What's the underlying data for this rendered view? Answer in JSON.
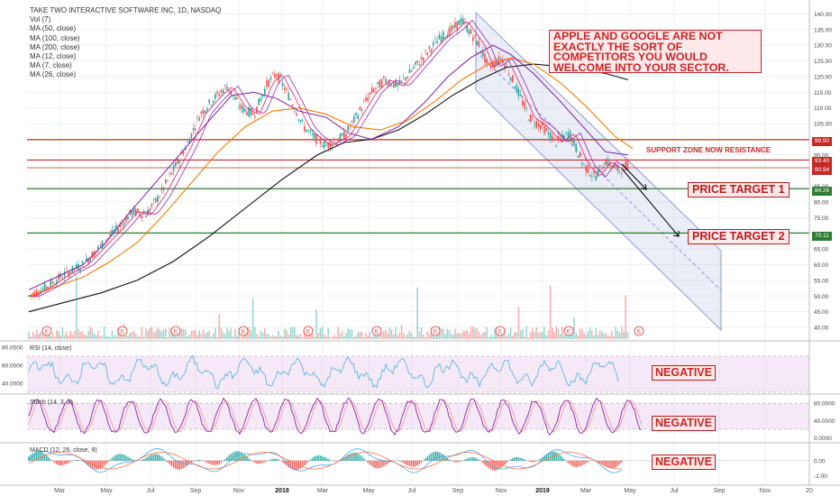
{
  "legend": {
    "title": "TAKE TWO INTERACTIVE SOFTWARE INC, 1D, NASDAQ",
    "items": [
      "Vol (7)",
      "MA (50, close)",
      "MA (100, close)",
      "MA (200, close)",
      "MA (12, close)",
      "MA (7, close)",
      "MA (26, close)"
    ]
  },
  "annotations": {
    "note": "APPLE AND GOOGLE ARE NOT EXACTLY THE SORT OF COMPETITORS YOU WOULD WELCOME INTO YOUR SECTOR.",
    "support_label": "SUPPORT ZONE NOW RESISTANCE",
    "target1": "PRICE TARGET 1",
    "target2": "PRICE TARGET 2",
    "rsi_status": "NEGATIVE",
    "stoch_status": "NEGATIVE",
    "macd_status": "NEGATIVE",
    "earnings_marker": "E"
  },
  "colors": {
    "up": "#26a69a",
    "down": "#ef5350",
    "resistance": "#c62828",
    "target": "#2e7d32",
    "ma200": "#111111",
    "ma100": "#f57c00",
    "ma50": "#7b1fa2",
    "ma26": "#9c27b0",
    "ma12": "#e91e63",
    "channel": "#9fa8da",
    "rsi": "#4fb3d9",
    "stoch_k": "#8e24aa",
    "stoch_d": "#ef9a9a",
    "macd": "#42a5f5",
    "signal": "#ff7043"
  },
  "chart_data": [
    {
      "type": "line",
      "panel": "price",
      "title": "TAKE TWO INTERACTIVE SOFTWARE INC, 1D, NASDAQ",
      "x_ticks": [
        "Mar",
        "May",
        "Jul",
        "Sep",
        "Nov",
        "2018",
        "Mar",
        "May",
        "Jul",
        "Sep",
        "Nov",
        "2019",
        "Mar",
        "May",
        "Jul",
        "Sep",
        "Nov",
        "20"
      ],
      "y_ticks": [
        40,
        45,
        50,
        55,
        60,
        65,
        70,
        75,
        80,
        85,
        90,
        95,
        100,
        105,
        110,
        115,
        120,
        125,
        130,
        135,
        140
      ],
      "ylim": [
        38,
        141
      ],
      "series": [
        {
          "name": "MA (50, close)",
          "points": [
            [
              0,
              52
            ],
            [
              30,
              56
            ],
            [
              60,
              60
            ],
            [
              85,
              67
            ],
            [
              110,
              76
            ],
            [
              140,
              86
            ],
            [
              170,
              96
            ],
            [
              200,
              106
            ],
            [
              225,
              114
            ],
            [
              250,
              115
            ],
            [
              275,
              113
            ],
            [
              300,
              109
            ],
            [
              330,
              107
            ],
            [
              355,
              102
            ],
            [
              380,
              100
            ],
            [
              410,
              104
            ],
            [
              440,
              112
            ],
            [
              465,
              120
            ],
            [
              490,
              126
            ],
            [
              515,
              130
            ],
            [
              535,
              127
            ],
            [
              560,
              121
            ],
            [
              590,
              112
            ],
            [
              615,
              104
            ],
            [
              640,
              96
            ],
            [
              665,
              95
            ]
          ]
        },
        {
          "name": "MA (100, close)",
          "points": [
            [
              0,
              50
            ],
            [
              30,
              53
            ],
            [
              60,
              56
            ],
            [
              90,
              61
            ],
            [
              120,
              67
            ],
            [
              150,
              76
            ],
            [
              180,
              86
            ],
            [
              210,
              96
            ],
            [
              240,
              104
            ],
            [
              270,
              109
            ],
            [
              300,
              110
            ],
            [
              330,
              108
            ],
            [
              360,
              104
            ],
            [
              390,
              103
            ],
            [
              420,
              106
            ],
            [
              450,
              112
            ],
            [
              480,
              119
            ],
            [
              510,
              124
            ],
            [
              535,
              126
            ],
            [
              560,
              124
            ],
            [
              590,
              118
            ],
            [
              620,
              110
            ],
            [
              650,
              101
            ],
            [
              670,
              97
            ]
          ]
        },
        {
          "name": "MA (200, close)",
          "points": [
            [
              0,
              45
            ],
            [
              40,
              48
            ],
            [
              80,
              51
            ],
            [
              120,
              55
            ],
            [
              160,
              61
            ],
            [
              200,
              69
            ],
            [
              240,
              78
            ],
            [
              280,
              87
            ],
            [
              320,
              95
            ],
            [
              350,
              99
            ],
            [
              380,
              100
            ],
            [
              410,
              103
            ],
            [
              440,
              108
            ],
            [
              470,
              114
            ],
            [
              500,
              119
            ],
            [
              530,
              123
            ],
            [
              560,
              124
            ],
            [
              600,
              123
            ],
            [
              640,
              121
            ],
            [
              665,
              119
            ]
          ]
        },
        {
          "name": "Price (close)",
          "points": [
            [
              0,
              50
            ],
            [
              20,
              53
            ],
            [
              40,
              57
            ],
            [
              60,
              60
            ],
            [
              80,
              66
            ],
            [
              100,
              72
            ],
            [
              115,
              77
            ],
            [
              130,
              76
            ],
            [
              145,
              82
            ],
            [
              160,
              90
            ],
            [
              175,
              98
            ],
            [
              190,
              108
            ],
            [
              205,
              113
            ],
            [
              220,
              117
            ],
            [
              235,
              110
            ],
            [
              250,
              108
            ],
            [
              265,
              118
            ],
            [
              275,
              121
            ],
            [
              290,
              113
            ],
            [
              305,
              104
            ],
            [
              315,
              101
            ],
            [
              330,
              98
            ],
            [
              350,
              101
            ],
            [
              365,
              108
            ],
            [
              380,
              115
            ],
            [
              395,
              119
            ],
            [
              410,
              117
            ],
            [
              425,
              122
            ],
            [
              440,
              127
            ],
            [
              455,
              132
            ],
            [
              470,
              135
            ],
            [
              480,
              138
            ],
            [
              490,
              134
            ],
            [
              500,
              130
            ],
            [
              510,
              123
            ],
            [
              525,
              126
            ],
            [
              540,
              117
            ],
            [
              555,
              107
            ],
            [
              570,
              104
            ],
            [
              585,
              99
            ],
            [
              600,
              102
            ],
            [
              615,
              92
            ],
            [
              628,
              88
            ],
            [
              640,
              93
            ],
            [
              655,
              90
            ],
            [
              665,
              92
            ]
          ]
        }
      ],
      "horizontal_levels": [
        {
          "value": 99.9,
          "label": "99.90"
        },
        {
          "value": 93.4,
          "label": "93.40"
        },
        {
          "value": 90.94,
          "label": "90.94"
        },
        {
          "value": 84.26,
          "label": "84.26"
        },
        {
          "value": 70.11,
          "label": "70.11"
        }
      ],
      "earnings_marks": 10,
      "grid": true
    },
    {
      "type": "line",
      "panel": "rsi",
      "title": "RSI (14, close)",
      "y_ticks": [
        40,
        60,
        80
      ],
      "y_tick_labels": [
        "40.0000",
        "60.0000",
        "80.0000"
      ],
      "ylim": [
        30,
        85
      ],
      "bands": [
        30,
        70
      ]
    },
    {
      "type": "line",
      "panel": "stoch",
      "title": "Stoch (14, 3, 3)",
      "y_ticks": [
        0,
        40,
        80
      ],
      "y_tick_labels": [
        "0.0000",
        "40.0000",
        "80.0000"
      ],
      "ylim": [
        -5,
        95
      ],
      "bands": [
        20,
        80
      ]
    },
    {
      "type": "bar",
      "panel": "macd",
      "title": "MACD (12, 26, close, 9)",
      "y_ticks": [
        -2,
        0
      ],
      "y_tick_labels": [
        "-2.00",
        "0.00"
      ],
      "ylim": [
        -3,
        2
      ]
    }
  ]
}
